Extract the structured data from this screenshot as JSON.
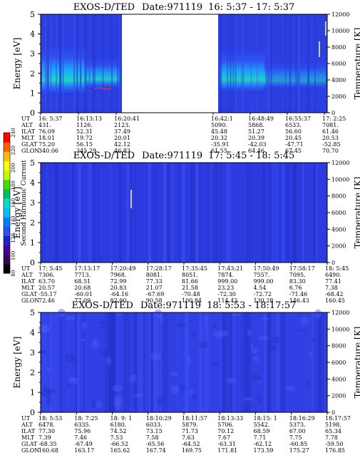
{
  "chart_data": [
    {
      "type": "heatmap",
      "title": "EXOS-D/TED",
      "date_label": "Date:971119",
      "time_range": "16: 5:37 - 17: 5:37",
      "ylabel": "Energy [eV]",
      "y2label": "Temperature [K]",
      "ylim": [
        0,
        5
      ],
      "y2lim": [
        0,
        12000
      ],
      "yticks": [
        "0",
        "1",
        "2",
        "3",
        "4",
        "5"
      ],
      "y2ticks": [
        "0",
        "2000",
        "4000",
        "6000",
        "8000",
        "10000",
        "12000"
      ],
      "data_gap": {
        "from": "16:20:41",
        "to": "16:42:1"
      },
      "row_labels": [
        "UT",
        "ALT",
        "ILAT",
        "MLT",
        "GLAT",
        "GLON"
      ],
      "columns": [
        {
          "UT": "16: 5:37",
          "ALT": "431.",
          "ILAT": "76.09",
          "MLT": "18.01",
          "GLAT": "75.20",
          "GLON": "340.06"
        },
        {
          "UT": "16:13:13",
          "ALT": "1126.",
          "ILAT": "52.31",
          "MLT": "19.72",
          "GLAT": "56.15",
          "GLON": "345.29"
        },
        {
          "UT": "16:20:41",
          "ALT": "2123.",
          "ILAT": "37.49",
          "MLT": "20.01",
          "GLAT": "42.12",
          "GLON": "46.83"
        },
        {
          "UT": "16:42:1",
          "ALT": "5090.",
          "ILAT": "45.48",
          "MLT": "20.32",
          "GLAT": "-35.91",
          "GLON": "61.55"
        },
        {
          "UT": "16:48:49",
          "ALT": "5868.",
          "ILAT": "51.27",
          "MLT": "20.39",
          "GLAT": "-42.03",
          "GLON": "64.46"
        },
        {
          "UT": "16:55:37",
          "ALT": "6533.",
          "ILAT": "56.60",
          "MLT": "20.45",
          "GLAT": "-47.71",
          "GLON": "67.45"
        },
        {
          "UT": "17: 2:25",
          "ALT": "7081.",
          "ILAT": "61.46",
          "MLT": "20.53",
          "GLAT": "-52.85",
          "GLON": "70.70"
        }
      ]
    },
    {
      "type": "heatmap",
      "title": "EXOS-D/TED",
      "date_label": "Date:971119",
      "time_range": "17: 5:45 - 18: 5:45",
      "ylabel": "Energy [eV]",
      "y2label": "Temperature [K]",
      "ylim": [
        0,
        5
      ],
      "y2lim": [
        0,
        12000
      ],
      "yticks": [
        "0",
        "1",
        "2",
        "3",
        "4",
        "5"
      ],
      "y2ticks": [
        "0",
        "2000",
        "4000",
        "6000",
        "8000",
        "10000",
        "12000"
      ],
      "row_labels": [
        "UT",
        "ALT",
        "ILAT",
        "MLT",
        "GLAT",
        "GLON"
      ],
      "columns": [
        {
          "UT": "17: 5:45",
          "ALT": "7306.",
          "ILAT": "63.70",
          "MLT": "20.57",
          "GLAT": "-55.17",
          "GLON": "72.46"
        },
        {
          "UT": "17:13:17",
          "ALT": "7713.",
          "ILAT": "68.51",
          "MLT": "20.68",
          "GLAT": "-60.01",
          "GLON": "77.09"
        },
        {
          "UT": "17:20:49",
          "ALT": "7968.",
          "ILAT": "72.99",
          "MLT": "20.83",
          "GLAT": "-64.16",
          "GLON": "82.90"
        },
        {
          "UT": "17:28:17",
          "ALT": "8081.",
          "ILAT": "77.33",
          "MLT": "21.07",
          "GLAT": "-67.69",
          "GLON": "90.58"
        },
        {
          "UT": "17:35:45",
          "ALT": "8051.",
          "ILAT": "81.66",
          "MLT": "21.58",
          "GLAT": "-70.48",
          "GLON": "100.84"
        },
        {
          "UT": "17:43:21",
          "ALT": "7874.",
          "ILAT": "999.00",
          "MLT": "23.23",
          "GLAT": "-72.30",
          "GLON": "114.43"
        },
        {
          "UT": "17:50:49",
          "ALT": "7557.",
          "ILAT": "999.00",
          "MLT": "4.54",
          "GLAT": "-72.72",
          "GLON": "130.28"
        },
        {
          "UT": "17:58:17",
          "ALT": "7095.",
          "ILAT": "83.30",
          "MLT": "6.76",
          "GLAT": "-71.46",
          "GLON": "146.43"
        },
        {
          "UT": "18: 5:45",
          "ALT": "6490.",
          "ILAT": "77.41",
          "MLT": "7.38",
          "GLAT": "-68.42",
          "GLON": "160.45"
        }
      ]
    },
    {
      "type": "heatmap",
      "title": "EXOS-D/TED",
      "date_label": "Date:971119",
      "time_range": "18: 5:53 - 18:17:57",
      "ylabel": "Energy [eV]",
      "y2label": "Temperature [K]",
      "ylim": [
        0,
        5
      ],
      "y2lim": [
        0,
        12000
      ],
      "yticks": [
        "0",
        "1",
        "2",
        "3",
        "4",
        "5"
      ],
      "y2ticks": [
        "0",
        "2000",
        "4000",
        "6000",
        "8000",
        "10000",
        "12000"
      ],
      "row_labels": [
        "UT",
        "ALT",
        "ILAT",
        "MLT",
        "GLAT",
        "GLON"
      ],
      "columns": [
        {
          "UT": "18: 5:53",
          "ALT": "6478.",
          "ILAT": "77.30",
          "MLT": "7.39",
          "GLAT": "-68.35",
          "GLON": "160.68"
        },
        {
          "UT": "18: 7:25",
          "ALT": "6335.",
          "ILAT": "75.96",
          "MLT": "7.46",
          "GLAT": "-67.49",
          "GLON": "163.17"
        },
        {
          "UT": "18: 9: 1",
          "ALT": "6180.",
          "ILAT": "74.52",
          "MLT": "7.53",
          "GLAT": "-66.52",
          "GLON": "165.62"
        },
        {
          "UT": "18:10:29",
          "ALT": "6033.",
          "ILAT": "73.15",
          "MLT": "7.58",
          "GLAT": "-65.56",
          "GLON": "167.74"
        },
        {
          "UT": "18:11:57",
          "ALT": "5879.",
          "ILAT": "71.73",
          "MLT": "7.63",
          "GLAT": "-64.52",
          "GLON": "169.75"
        },
        {
          "UT": "18:13:33",
          "ALT": "5706.",
          "ILAT": "70.12",
          "MLT": "7.67",
          "GLAT": "-63.31",
          "GLON": "171.81"
        },
        {
          "UT": "18:15: 1",
          "ALT": "5542.",
          "ILAT": "68.59",
          "MLT": "7.71",
          "GLAT": "-62.12",
          "GLON": "173.59"
        },
        {
          "UT": "18:16:29",
          "ALT": "5373.",
          "ILAT": "67.00",
          "MLT": "7.75",
          "GLAT": "-60.85",
          "GLON": "175.27"
        },
        {
          "UT": "18:17:57",
          "ALT": "5198.",
          "ILAT": "65.34",
          "MLT": "7.78",
          "GLAT": "-59.50",
          "GLON": "176.85"
        }
      ]
    }
  ],
  "colorbar": {
    "label": "Second Harmonic Current",
    "ticks": [
      "80",
      "100",
      "120",
      "140",
      "160",
      "180",
      "200",
      "220",
      "240"
    ],
    "colors": [
      "#000000",
      "#3a0060",
      "#4b0090",
      "#2020d0",
      "#2a50f0",
      "#0080ff",
      "#00c0ff",
      "#00e0d0",
      "#00c060",
      "#40e000",
      "#c0ff00",
      "#ffff00",
      "#ffc000",
      "#ff6000",
      "#ff0000"
    ]
  }
}
